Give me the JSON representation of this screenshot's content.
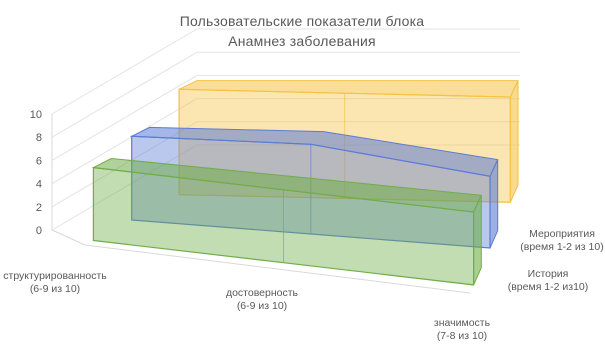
{
  "chart_data": {
    "type": "area",
    "title": "Пользовательские показатели блока\nАнамнез заболевания",
    "categories": [
      "структурированность\n(6-9 из 10)",
      "достоверность\n(6-9 из 10)",
      "значимость\n(7-8 из 10)"
    ],
    "series": [
      {
        "name": "Мероприятия\n(время 1-2 из 10)",
        "values": [
          9,
          9,
          9
        ],
        "color": "#F5C242"
      },
      {
        "name": "История\n(время 1-2 из10)",
        "values": [
          7,
          7.5,
          6
        ],
        "color": "#5B7BD5"
      },
      {
        "name": "",
        "values": [
          6,
          6,
          6
        ],
        "color": "#70AD47"
      }
    ],
    "ylim": [
      0,
      10
    ],
    "yticks": [
      "0",
      "2",
      "4",
      "6",
      "8",
      "10"
    ],
    "grid": true,
    "projection": "3d"
  }
}
